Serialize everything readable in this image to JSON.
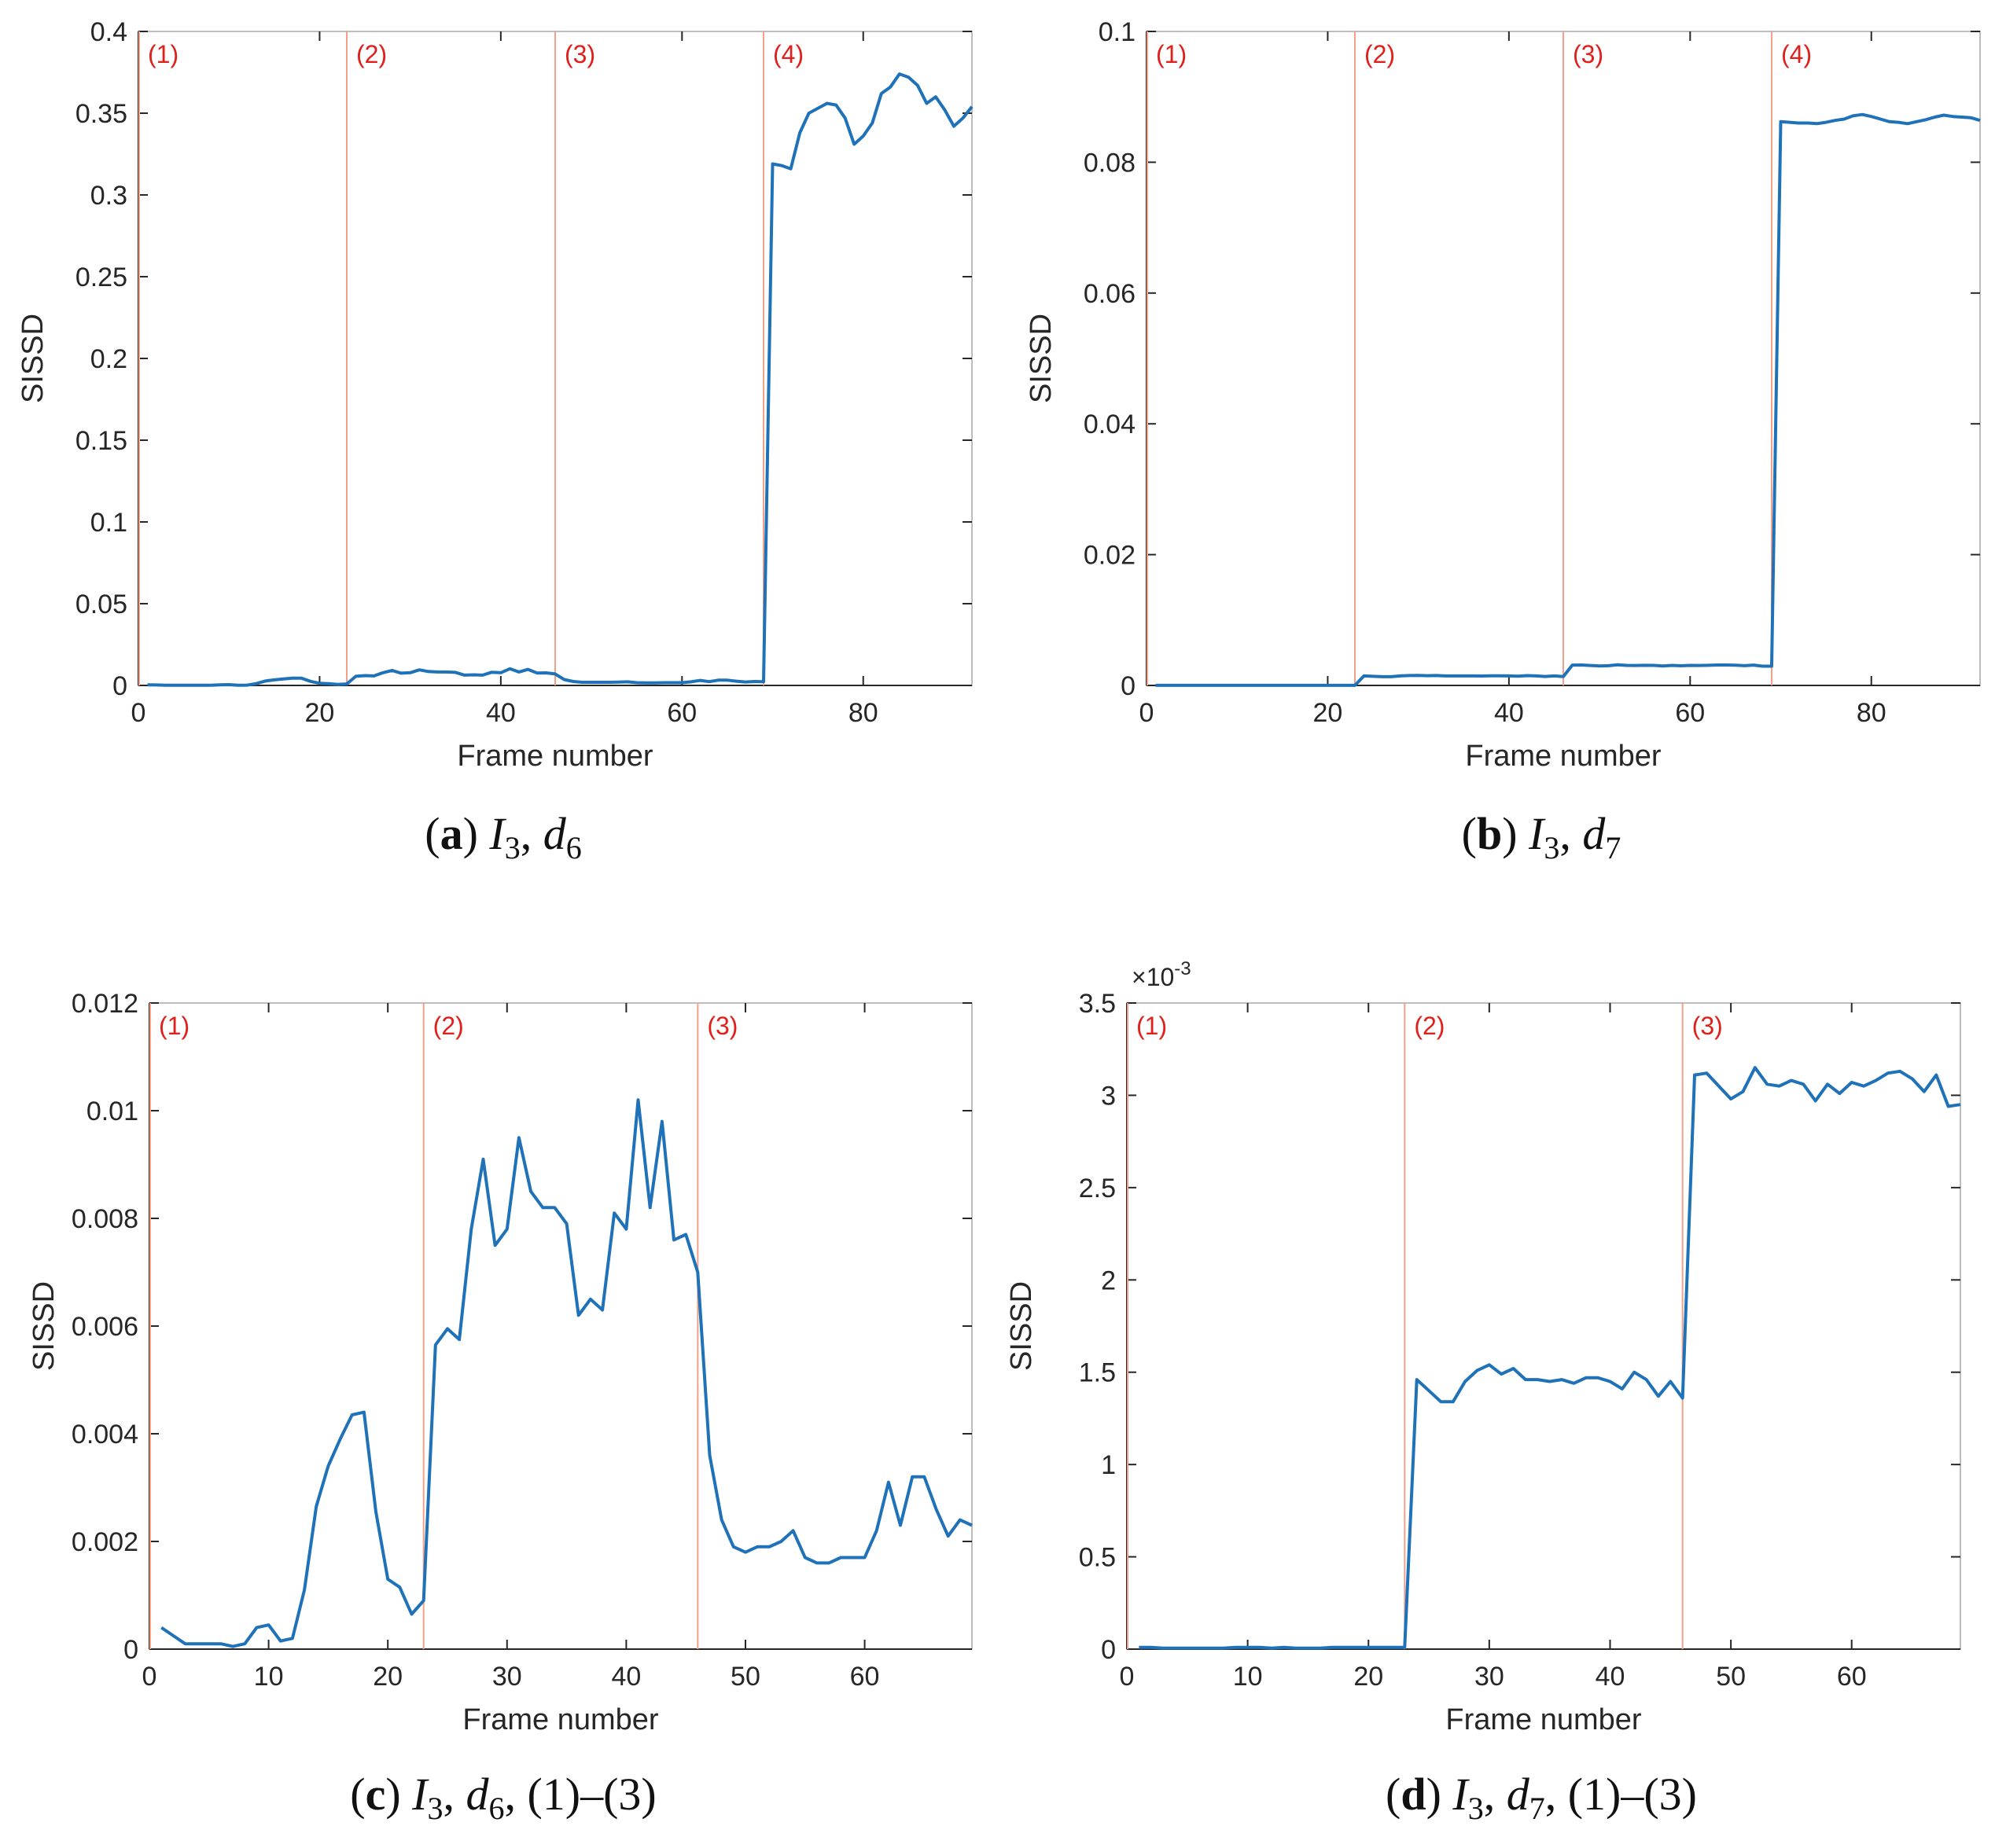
{
  "figure": {
    "style": {
      "line_color": "#1f72b8",
      "divider_color": "#f2a08a",
      "region_label_color": "#e0201b",
      "axis_color": "#262626",
      "box_color": "#bdbdbd"
    }
  },
  "chart_data": [
    {
      "id": "a",
      "type": "line",
      "caption": {
        "letter": "a",
        "parts": [
          "I",
          "3",
          ", ",
          "d",
          "6"
        ]
      },
      "xlabel": "Frame number",
      "ylabel": "SISSD",
      "xlim": [
        0,
        92
      ],
      "ylim": [
        0,
        0.4
      ],
      "xticks": [
        0,
        20,
        40,
        60,
        80
      ],
      "xtick_labels": [
        "0",
        "20",
        "40",
        "60",
        "80"
      ],
      "yticks": [
        0,
        0.05,
        0.1,
        0.15,
        0.2,
        0.25,
        0.3,
        0.35,
        0.4
      ],
      "ytick_labels": [
        "0",
        "0.05",
        "0.1",
        "0.15",
        "0.2",
        "0.25",
        "0.3",
        "0.35",
        "0.4"
      ],
      "exponent_label": "",
      "region_dividers": [
        0,
        23,
        46,
        69
      ],
      "region_labels": [
        "(1)",
        "(2)",
        "(3)",
        "(4)"
      ],
      "series": [
        {
          "name": "SISSD",
          "x": [
            1,
            2,
            3,
            4,
            5,
            6,
            7,
            8,
            9,
            10,
            11,
            12,
            13,
            14,
            15,
            16,
            17,
            18,
            19,
            20,
            21,
            22,
            23,
            24,
            25,
            26,
            27,
            28,
            29,
            30,
            31,
            32,
            33,
            34,
            35,
            36,
            37,
            38,
            39,
            40,
            41,
            42,
            43,
            44,
            45,
            46,
            47,
            48,
            49,
            50,
            51,
            52,
            53,
            54,
            55,
            56,
            57,
            58,
            59,
            60,
            61,
            62,
            63,
            64,
            65,
            66,
            67,
            68,
            69,
            70,
            71,
            72,
            73,
            74,
            75,
            76,
            77,
            78,
            79,
            80,
            81,
            82,
            83,
            84,
            85,
            86,
            87,
            88,
            89,
            90,
            91,
            92
          ],
          "y": [
            0.0004,
            0.0003,
            0.0001,
            0.0001,
            0.0001,
            0.0001,
            0.0001,
            0.0001,
            0.0004,
            0.0005,
            0.0001,
            0.0002,
            0.0011,
            0.0027,
            0.0034,
            0.004,
            0.0044,
            0.0044,
            0.0025,
            0.0013,
            0.0011,
            0.0006,
            0.0009,
            0.0056,
            0.006,
            0.0058,
            0.0078,
            0.0092,
            0.0075,
            0.0078,
            0.0095,
            0.0085,
            0.0082,
            0.0082,
            0.008,
            0.0063,
            0.0065,
            0.0063,
            0.0081,
            0.0078,
            0.0102,
            0.0082,
            0.0098,
            0.0076,
            0.0077,
            0.007,
            0.0036,
            0.0024,
            0.0019,
            0.0019,
            0.0019,
            0.0019,
            0.002,
            0.0022,
            0.0017,
            0.0016,
            0.0016,
            0.0017,
            0.0017,
            0.0017,
            0.0022,
            0.0031,
            0.0023,
            0.0032,
            0.0032,
            0.0026,
            0.0021,
            0.0024,
            0.0023,
            0.319,
            0.318,
            0.316,
            0.338,
            0.35,
            0.353,
            0.356,
            0.355,
            0.347,
            0.331,
            0.336,
            0.344,
            0.362,
            0.366,
            0.374,
            0.372,
            0.367,
            0.356,
            0.36,
            0.352,
            0.342,
            0.347,
            0.354
          ]
        }
      ]
    },
    {
      "id": "b",
      "type": "line",
      "caption": {
        "letter": "b",
        "parts": [
          "I",
          "3",
          ", ",
          "d",
          "7"
        ]
      },
      "xlabel": "Frame number",
      "ylabel": "SISSD",
      "xlim": [
        0,
        92
      ],
      "ylim": [
        0,
        0.1
      ],
      "xticks": [
        0,
        20,
        40,
        60,
        80
      ],
      "xtick_labels": [
        "0",
        "20",
        "40",
        "60",
        "80"
      ],
      "yticks": [
        0,
        0.02,
        0.04,
        0.06,
        0.08,
        0.1
      ],
      "ytick_labels": [
        "0",
        "0.02",
        "0.04",
        "0.06",
        "0.08",
        "0.1"
      ],
      "exponent_label": "",
      "region_dividers": [
        0,
        23,
        46,
        69
      ],
      "region_labels": [
        "(1)",
        "(2)",
        "(3)",
        "(4)"
      ],
      "series": [
        {
          "name": "SISSD",
          "x": [
            1,
            2,
            3,
            4,
            5,
            6,
            7,
            8,
            9,
            10,
            11,
            12,
            13,
            14,
            15,
            16,
            17,
            18,
            19,
            20,
            21,
            22,
            23,
            24,
            25,
            26,
            27,
            28,
            29,
            30,
            31,
            32,
            33,
            34,
            35,
            36,
            37,
            38,
            39,
            40,
            41,
            42,
            43,
            44,
            45,
            46,
            47,
            48,
            49,
            50,
            51,
            52,
            53,
            54,
            55,
            56,
            57,
            58,
            59,
            60,
            61,
            62,
            63,
            64,
            65,
            66,
            67,
            68,
            69,
            70,
            71,
            72,
            73,
            74,
            75,
            76,
            77,
            78,
            79,
            80,
            81,
            82,
            83,
            84,
            85,
            86,
            87,
            88,
            89,
            90,
            91,
            92
          ],
          "y": [
            1e-05,
            1e-05,
            1e-05,
            1e-05,
            1e-05,
            1e-05,
            1e-05,
            1e-05,
            1e-05,
            1e-05,
            1e-05,
            1e-05,
            1e-05,
            1e-05,
            1e-05,
            1e-05,
            1e-05,
            1e-05,
            1e-05,
            1e-05,
            1e-05,
            1e-05,
            1e-05,
            0.00146,
            0.0014,
            0.00134,
            0.00134,
            0.00145,
            0.00151,
            0.00154,
            0.00149,
            0.00152,
            0.00146,
            0.00146,
            0.00145,
            0.00146,
            0.00144,
            0.00147,
            0.00147,
            0.00145,
            0.00141,
            0.0015,
            0.00146,
            0.00137,
            0.00145,
            0.00136,
            0.00311,
            0.00312,
            0.00305,
            0.00298,
            0.00302,
            0.00315,
            0.00306,
            0.00305,
            0.00308,
            0.00306,
            0.00297,
            0.00306,
            0.00301,
            0.00307,
            0.00305,
            0.00308,
            0.00312,
            0.00313,
            0.00309,
            0.00302,
            0.00311,
            0.00294,
            0.00295,
            0.0862,
            0.0861,
            0.086,
            0.086,
            0.0859,
            0.0861,
            0.0864,
            0.0866,
            0.0871,
            0.0873,
            0.087,
            0.0866,
            0.0862,
            0.0861,
            0.0859,
            0.0862,
            0.0865,
            0.0869,
            0.0872,
            0.087,
            0.0869,
            0.0868,
            0.0864
          ]
        }
      ]
    },
    {
      "id": "c",
      "type": "line",
      "caption": {
        "letter": "c",
        "parts": [
          "I",
          "3",
          ", ",
          "d",
          "6",
          ", (1)–(3)"
        ]
      },
      "xlabel": "Frame number",
      "ylabel": "SISSD",
      "xlim": [
        0,
        69
      ],
      "ylim": [
        0,
        0.012
      ],
      "xticks": [
        0,
        10,
        20,
        30,
        40,
        50,
        60
      ],
      "xtick_labels": [
        "0",
        "10",
        "20",
        "30",
        "40",
        "50",
        "60"
      ],
      "yticks": [
        0,
        0.002,
        0.004,
        0.006,
        0.008,
        0.01,
        0.012
      ],
      "ytick_labels": [
        "0",
        "0.002",
        "0.004",
        "0.006",
        "0.008",
        "0.01",
        "0.012"
      ],
      "exponent_label": "",
      "region_dividers": [
        0,
        23,
        46
      ],
      "region_labels": [
        "(1)",
        "(2)",
        "(3)"
      ],
      "series": [
        {
          "name": "SISSD",
          "x": [
            1,
            2,
            3,
            4,
            5,
            6,
            7,
            8,
            9,
            10,
            11,
            12,
            13,
            14,
            15,
            16,
            17,
            18,
            19,
            20,
            21,
            22,
            23,
            24,
            25,
            26,
            27,
            28,
            29,
            30,
            31,
            32,
            33,
            34,
            35,
            36,
            37,
            38,
            39,
            40,
            41,
            42,
            43,
            44,
            45,
            46,
            47,
            48,
            49,
            50,
            51,
            52,
            53,
            54,
            55,
            56,
            57,
            58,
            59,
            60,
            61,
            62,
            63,
            64,
            65,
            66,
            67,
            68,
            69
          ],
          "y": [
            0.0004,
            0.00025,
            0.0001,
            0.0001,
            0.0001,
            0.0001,
            5e-05,
            0.0001,
            0.0004,
            0.00045,
            0.00015,
            0.0002,
            0.0011,
            0.00265,
            0.0034,
            0.0039,
            0.00435,
            0.0044,
            0.00255,
            0.0013,
            0.00115,
            0.00065,
            0.0009,
            0.00565,
            0.00595,
            0.00575,
            0.0078,
            0.0091,
            0.0075,
            0.0078,
            0.0095,
            0.0085,
            0.0082,
            0.0082,
            0.0079,
            0.0062,
            0.0065,
            0.0063,
            0.0081,
            0.0078,
            0.0102,
            0.0082,
            0.0098,
            0.0076,
            0.0077,
            0.007,
            0.0036,
            0.0024,
            0.0019,
            0.0018,
            0.0019,
            0.0019,
            0.002,
            0.0022,
            0.0017,
            0.0016,
            0.0016,
            0.0017,
            0.0017,
            0.0017,
            0.0022,
            0.0031,
            0.0023,
            0.0032,
            0.0032,
            0.0026,
            0.0021,
            0.0024,
            0.0023
          ]
        }
      ]
    },
    {
      "id": "d",
      "type": "line",
      "caption": {
        "letter": "d",
        "parts": [
          "I",
          "3",
          ", ",
          "d",
          "7",
          ", (1)–(3)"
        ]
      },
      "xlabel": "Frame number",
      "ylabel": "SISSD",
      "xlim": [
        0,
        69
      ],
      "ylim": [
        0,
        3.5
      ],
      "xticks": [
        0,
        10,
        20,
        30,
        40,
        50,
        60
      ],
      "xtick_labels": [
        "0",
        "10",
        "20",
        "30",
        "40",
        "50",
        "60"
      ],
      "yticks": [
        0,
        0.5,
        1,
        1.5,
        2,
        2.5,
        3,
        3.5
      ],
      "ytick_labels": [
        "0",
        "0.5",
        "1",
        "1.5",
        "2",
        "2.5",
        "3",
        "3.5"
      ],
      "exponent_label": "×10",
      "exponent_power": "-3",
      "region_dividers": [
        0,
        23,
        46
      ],
      "region_labels": [
        "(1)",
        "(2)",
        "(3)"
      ],
      "series": [
        {
          "name": "SISSD",
          "x": [
            1,
            2,
            3,
            4,
            5,
            6,
            7,
            8,
            9,
            10,
            11,
            12,
            13,
            14,
            15,
            16,
            17,
            18,
            19,
            20,
            21,
            22,
            23,
            24,
            25,
            26,
            27,
            28,
            29,
            30,
            31,
            32,
            33,
            34,
            35,
            36,
            37,
            38,
            39,
            40,
            41,
            42,
            43,
            44,
            45,
            46,
            47,
            48,
            49,
            50,
            51,
            52,
            53,
            54,
            55,
            56,
            57,
            58,
            59,
            60,
            61,
            62,
            63,
            64,
            65,
            66,
            67,
            68,
            69
          ],
          "y": [
            0.01,
            0.01,
            0.005,
            0.005,
            0.005,
            0.005,
            0.005,
            0.005,
            0.01,
            0.01,
            0.01,
            0.005,
            0.01,
            0.005,
            0.005,
            0.005,
            0.01,
            0.01,
            0.01,
            0.01,
            0.01,
            0.01,
            0.01,
            1.46,
            1.4,
            1.34,
            1.34,
            1.45,
            1.51,
            1.54,
            1.49,
            1.52,
            1.46,
            1.46,
            1.45,
            1.46,
            1.44,
            1.47,
            1.47,
            1.45,
            1.41,
            1.5,
            1.46,
            1.37,
            1.45,
            1.36,
            3.11,
            3.12,
            3.05,
            2.98,
            3.02,
            3.15,
            3.06,
            3.05,
            3.08,
            3.06,
            2.97,
            3.06,
            3.01,
            3.07,
            3.05,
            3.08,
            3.12,
            3.13,
            3.09,
            3.02,
            3.11,
            2.94,
            2.95
          ]
        }
      ]
    }
  ]
}
